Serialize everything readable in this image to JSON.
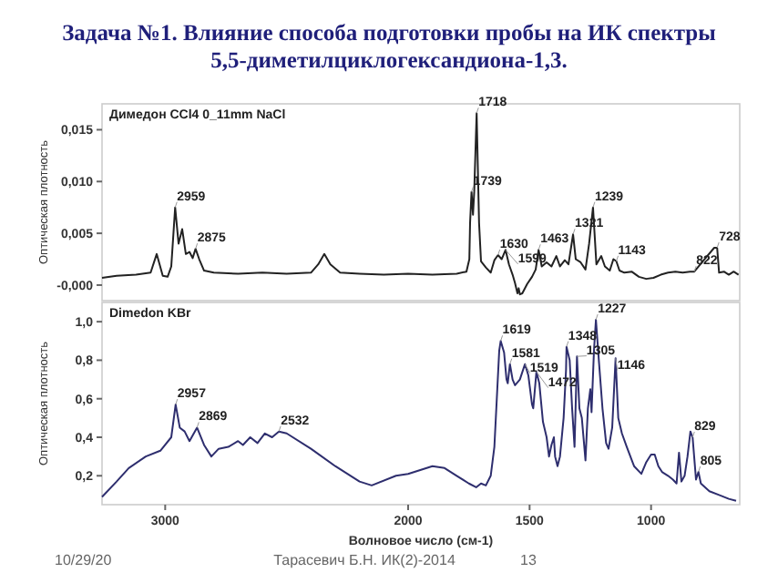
{
  "chart_data": [
    {
      "type": "line",
      "title": "Задача №1. Влияние способа подготовки пробы на ИК спектры 5,5-диметилциклогександиона-1,3.",
      "subtitle": "Димедон CCl4 0_11mm NaCl",
      "ylabel": "Оптическая плотность",
      "xlim": [
        3260,
        635
      ],
      "ylim": [
        -0.0015,
        0.0175
      ],
      "yticks": [
        {
          "value": 0,
          "label": "-0,000"
        },
        {
          "value": 0.005,
          "label": "0,005"
        },
        {
          "value": 0.01,
          "label": "0,010"
        },
        {
          "value": 0.015,
          "label": "0,015"
        }
      ],
      "tick_labels": "y",
      "series": [
        {
          "color": "#222222",
          "x": [
            3260,
            3200,
            3120,
            3060,
            3035,
            3010,
            2990,
            2975,
            2959,
            2945,
            2930,
            2915,
            2900,
            2887,
            2875,
            2860,
            2840,
            2800,
            2700,
            2600,
            2500,
            2400,
            2370,
            2345,
            2320,
            2280,
            2200,
            2100,
            2000,
            1900,
            1800,
            1760,
            1748,
            1745,
            1739,
            1733,
            1728,
            1718,
            1708,
            1700,
            1680,
            1660,
            1645,
            1630,
            1615,
            1599,
            1585,
            1570,
            1560,
            1550,
            1545,
            1540,
            1530,
            1510,
            1490,
            1475,
            1463,
            1450,
            1430,
            1410,
            1390,
            1375,
            1355,
            1340,
            1321,
            1310,
            1290,
            1270,
            1255,
            1239,
            1225,
            1205,
            1190,
            1170,
            1155,
            1143,
            1130,
            1110,
            1080,
            1050,
            1020,
            990,
            960,
            930,
            900,
            870,
            840,
            822,
            780,
            740,
            728,
            720,
            700,
            680,
            660,
            640
          ],
          "values": [
            0.0007,
            0.0009,
            0.001,
            0.0012,
            0.003,
            0.0009,
            0.0008,
            0.0018,
            0.0075,
            0.004,
            0.0054,
            0.003,
            0.0032,
            0.0026,
            0.0035,
            0.0025,
            0.0014,
            0.0012,
            0.0011,
            0.0012,
            0.0011,
            0.0012,
            0.002,
            0.003,
            0.002,
            0.0012,
            0.0011,
            0.001,
            0.0011,
            0.001,
            0.0011,
            0.0013,
            0.0025,
            0.006,
            0.009,
            0.0068,
            0.009,
            0.0166,
            0.006,
            0.0023,
            0.0017,
            0.0012,
            0.0024,
            0.0029,
            0.0025,
            0.0034,
            0.002,
            0.001,
            0.0002,
            -0.0008,
            -0.0003,
            -0.0009,
            -0.0008,
            0.0001,
            0.0008,
            0.0015,
            0.0034,
            0.0018,
            0.0022,
            0.0018,
            0.0028,
            0.0018,
            0.0024,
            0.002,
            0.0049,
            0.0025,
            0.0022,
            0.0015,
            0.004,
            0.0075,
            0.002,
            0.0028,
            0.0018,
            0.0014,
            0.0025,
            0.0023,
            0.0014,
            0.0012,
            0.0013,
            0.0008,
            0.0006,
            0.0007,
            0.001,
            0.0012,
            0.0013,
            0.0012,
            0.0013,
            0.0013,
            0.0025,
            0.0036,
            0.0036,
            0.0012,
            0.0013,
            0.001,
            0.0013,
            0.001
          ]
        }
      ],
      "annotations": [
        {
          "text": "2959",
          "x": 2959,
          "y": 0.0075
        },
        {
          "text": "2875",
          "x": 2875,
          "y": 0.0035
        },
        {
          "text": "1739",
          "x": 1739,
          "y": 0.009
        },
        {
          "text": "1718",
          "x": 1718,
          "y": 0.0166
        },
        {
          "text": "1630",
          "x": 1630,
          "y": 0.0029
        },
        {
          "text": "1599",
          "x": 1599,
          "y": 0.0034
        },
        {
          "text": "1463",
          "x": 1463,
          "y": 0.0034
        },
        {
          "text": "1321",
          "x": 1321,
          "y": 0.0049
        },
        {
          "text": "1239",
          "x": 1239,
          "y": 0.0075
        },
        {
          "text": "1143",
          "x": 1143,
          "y": 0.0023
        },
        {
          "text": "822",
          "x": 822,
          "y": 0.0013
        },
        {
          "text": "728",
          "x": 728,
          "y": 0.0036
        }
      ]
    },
    {
      "type": "line",
      "subtitle": "Dimedon KBr",
      "xlabel": "Волновое число (см-1)",
      "ylabel": "Оптическая плотность",
      "xlim": [
        3260,
        635
      ],
      "ylim": [
        0.05,
        1.1
      ],
      "xticks": [
        3000,
        2000,
        1500,
        1000
      ],
      "yticks": [
        {
          "value": 0.2,
          "label": "0,2"
        },
        {
          "value": 0.4,
          "label": "0,4"
        },
        {
          "value": 0.6,
          "label": "0,6"
        },
        {
          "value": 0.8,
          "label": "0,8"
        },
        {
          "value": 1.0,
          "label": "1,0"
        }
      ],
      "series": [
        {
          "color": "#2e2e6e",
          "x": [
            3260,
            3200,
            3150,
            3080,
            3020,
            2975,
            2957,
            2940,
            2920,
            2900,
            2869,
            2840,
            2810,
            2780,
            2740,
            2700,
            2680,
            2650,
            2620,
            2590,
            2560,
            2532,
            2500,
            2400,
            2300,
            2200,
            2150,
            2050,
            2000,
            1900,
            1850,
            1800,
            1750,
            1720,
            1700,
            1680,
            1660,
            1645,
            1635,
            1625,
            1619,
            1605,
            1595,
            1590,
            1581,
            1570,
            1560,
            1540,
            1519,
            1505,
            1490,
            1485,
            1472,
            1460,
            1445,
            1430,
            1420,
            1410,
            1400,
            1395,
            1385,
            1375,
            1360,
            1350,
            1348,
            1335,
            1325,
            1315,
            1305,
            1295,
            1285,
            1270,
            1260,
            1250,
            1245,
            1235,
            1227,
            1215,
            1200,
            1185,
            1175,
            1160,
            1146,
            1135,
            1120,
            1100,
            1070,
            1040,
            1020,
            1000,
            985,
            970,
            955,
            930,
            910,
            895,
            885,
            875,
            862,
            850,
            838,
            829,
            815,
            805,
            795,
            760,
            720,
            680,
            650
          ],
          "values": [
            0.09,
            0.17,
            0.24,
            0.3,
            0.33,
            0.4,
            0.57,
            0.45,
            0.43,
            0.38,
            0.45,
            0.36,
            0.3,
            0.34,
            0.35,
            0.38,
            0.36,
            0.4,
            0.37,
            0.42,
            0.4,
            0.43,
            0.42,
            0.34,
            0.25,
            0.17,
            0.15,
            0.2,
            0.21,
            0.25,
            0.24,
            0.2,
            0.16,
            0.14,
            0.16,
            0.15,
            0.2,
            0.35,
            0.6,
            0.85,
            0.9,
            0.84,
            0.7,
            0.68,
            0.78,
            0.7,
            0.67,
            0.7,
            0.78,
            0.72,
            0.57,
            0.55,
            0.74,
            0.68,
            0.48,
            0.4,
            0.3,
            0.36,
            0.4,
            0.3,
            0.25,
            0.3,
            0.5,
            0.75,
            0.87,
            0.8,
            0.55,
            0.35,
            0.82,
            0.55,
            0.5,
            0.28,
            0.55,
            0.65,
            0.53,
            0.85,
            1.01,
            0.8,
            0.55,
            0.37,
            0.34,
            0.45,
            0.81,
            0.5,
            0.42,
            0.35,
            0.25,
            0.21,
            0.27,
            0.31,
            0.31,
            0.25,
            0.22,
            0.2,
            0.18,
            0.16,
            0.32,
            0.17,
            0.2,
            0.3,
            0.43,
            0.4,
            0.18,
            0.22,
            0.16,
            0.12,
            0.1,
            0.08,
            0.07
          ]
        }
      ],
      "annotations": [
        {
          "text": "2957",
          "x": 2957,
          "y": 0.57
        },
        {
          "text": "2869",
          "x": 2869,
          "y": 0.45
        },
        {
          "text": "2532",
          "x": 2532,
          "y": 0.43
        },
        {
          "text": "1619",
          "x": 1619,
          "y": 0.9
        },
        {
          "text": "1581",
          "x": 1581,
          "y": 0.78
        },
        {
          "text": "1519",
          "x": 1519,
          "y": 0.78
        },
        {
          "text": "1472",
          "x": 1472,
          "y": 0.74
        },
        {
          "text": "1348",
          "x": 1348,
          "y": 0.87
        },
        {
          "text": "1305",
          "x": 1305,
          "y": 0.82
        },
        {
          "text": "1227",
          "x": 1227,
          "y": 1.01
        },
        {
          "text": "1146",
          "x": 1146,
          "y": 0.81
        },
        {
          "text": "829",
          "x": 829,
          "y": 0.4
        },
        {
          "text": "805",
          "x": 805,
          "y": 0.22
        },
        "10/29/20",
        "Тарасевич Б.Н. ИК(2)-2014",
        "13"
      ]
    }
  ]
}
